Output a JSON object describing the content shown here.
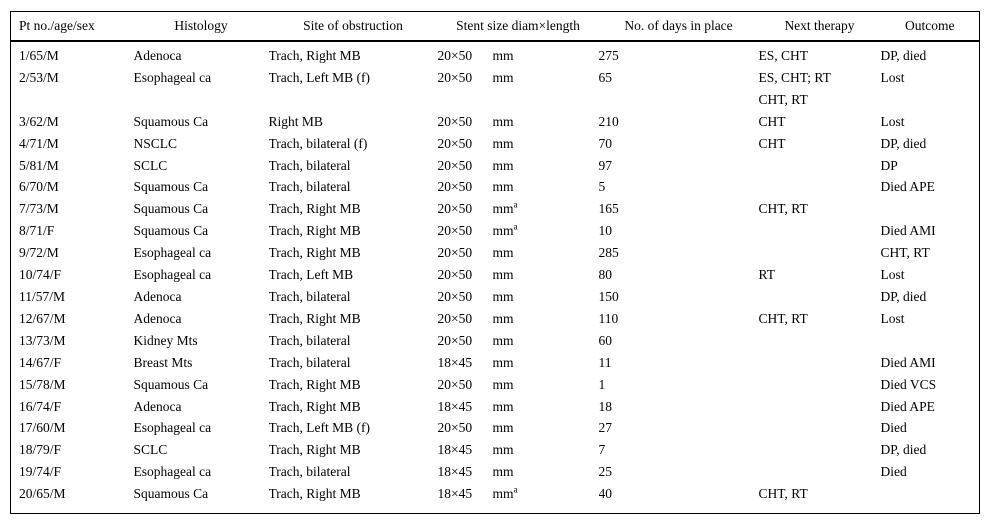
{
  "page": {
    "background_color": "#ffffff",
    "text_color": "#000000",
    "rule_color": "#000000"
  },
  "table": {
    "columns": [
      "Pt no./age/sex",
      "Histology",
      "Site of obstruction",
      "Stent size diam×length",
      "No. of days in place",
      "Next therapy",
      "Outcome"
    ],
    "footnote_marker": "a",
    "rows": [
      {
        "pt": "1/65/M",
        "histology": "Adenoca",
        "site": "Trach, Right MB",
        "size": "20×50",
        "unit": "mm",
        "unit_sup": "",
        "days": "275",
        "therapy": [
          "ES, CHT"
        ],
        "outcome": "DP, died"
      },
      {
        "pt": "2/53/M",
        "histology": "Esophageal ca",
        "site": "Trach, Left MB (f)",
        "size": "20×50",
        "unit": "mm",
        "unit_sup": "",
        "days": "65",
        "therapy": [
          "ES, CHT; RT",
          "CHT, RT"
        ],
        "outcome": "Lost"
      },
      {
        "pt": "3/62/M",
        "histology": "Squamous Ca",
        "site": "Right MB",
        "size": "20×50",
        "unit": "mm",
        "unit_sup": "",
        "days": "210",
        "therapy": [
          "CHT"
        ],
        "outcome": "Lost"
      },
      {
        "pt": "4/71/M",
        "histology": "NSCLC",
        "site": "Trach, bilateral (f)",
        "size": "20×50",
        "unit": "mm",
        "unit_sup": "",
        "days": "70",
        "therapy": [
          "CHT"
        ],
        "outcome": "DP, died"
      },
      {
        "pt": "5/81/M",
        "histology": "SCLC",
        "site": "Trach, bilateral",
        "size": "20×50",
        "unit": "mm",
        "unit_sup": "",
        "days": "97",
        "therapy": [],
        "outcome": "DP"
      },
      {
        "pt": "6/70/M",
        "histology": "Squamous Ca",
        "site": "Trach, bilateral",
        "size": "20×50",
        "unit": "mm",
        "unit_sup": "",
        "days": "5",
        "therapy": [],
        "outcome": "Died APE"
      },
      {
        "pt": "7/73/M",
        "histology": "Squamous Ca",
        "site": "Trach, Right MB",
        "size": "20×50",
        "unit": "mm",
        "unit_sup": "a",
        "days": "165",
        "therapy": [
          "CHT, RT"
        ],
        "outcome": ""
      },
      {
        "pt": "8/71/F",
        "histology": "Squamous Ca",
        "site": "Trach, Right MB",
        "size": "20×50",
        "unit": "mm",
        "unit_sup": "a",
        "days": "10",
        "therapy": [],
        "outcome": "Died AMI"
      },
      {
        "pt": "9/72/M",
        "histology": "Esophageal ca",
        "site": "Trach, Right MB",
        "size": "20×50",
        "unit": "mm",
        "unit_sup": "",
        "days": "285",
        "therapy": [],
        "outcome": "CHT, RT"
      },
      {
        "pt": "10/74/F",
        "histology": "Esophageal ca",
        "site": "Trach, Left MB",
        "size": "20×50",
        "unit": "mm",
        "unit_sup": "",
        "days": "80",
        "therapy": [
          "RT"
        ],
        "outcome": "Lost"
      },
      {
        "pt": "11/57/M",
        "histology": "Adenoca",
        "site": "Trach, bilateral",
        "size": "20×50",
        "unit": "mm",
        "unit_sup": "",
        "days": "150",
        "therapy": [],
        "outcome": "DP, died"
      },
      {
        "pt": "12/67/M",
        "histology": "Adenoca",
        "site": "Trach, Right MB",
        "size": "20×50",
        "unit": "mm",
        "unit_sup": "",
        "days": "110",
        "therapy": [
          "CHT, RT"
        ],
        "outcome": "Lost"
      },
      {
        "pt": "13/73/M",
        "histology": "Kidney Mts",
        "site": "Trach, bilateral",
        "size": "20×50",
        "unit": "mm",
        "unit_sup": "",
        "days": "60",
        "therapy": [],
        "outcome": ""
      },
      {
        "pt": "14/67/F",
        "histology": "Breast Mts",
        "site": "Trach, bilateral",
        "size": "18×45",
        "unit": "mm",
        "unit_sup": "",
        "days": "11",
        "therapy": [],
        "outcome": "Died AMI"
      },
      {
        "pt": "15/78/M",
        "histology": "Squamous Ca",
        "site": "Trach, Right MB",
        "size": "20×50",
        "unit": "mm",
        "unit_sup": "",
        "days": "1",
        "therapy": [],
        "outcome": "Died VCS"
      },
      {
        "pt": "16/74/F",
        "histology": "Adenoca",
        "site": "Trach, Right MB",
        "size": "18×45",
        "unit": "mm",
        "unit_sup": "",
        "days": "18",
        "therapy": [],
        "outcome": "Died APE"
      },
      {
        "pt": "17/60/M",
        "histology": "Esophageal ca",
        "site": "Trach, Left MB (f)",
        "size": "20×50",
        "unit": "mm",
        "unit_sup": "",
        "days": "27",
        "therapy": [],
        "outcome": "Died"
      },
      {
        "pt": "18/79/F",
        "histology": "SCLC",
        "site": "Trach, Right MB",
        "size": "18×45",
        "unit": "mm",
        "unit_sup": "",
        "days": "7",
        "therapy": [],
        "outcome": "DP, died"
      },
      {
        "pt": "19/74/F",
        "histology": "Esophageal ca",
        "site": "Trach, bilateral",
        "size": "18×45",
        "unit": "mm",
        "unit_sup": "",
        "days": "25",
        "therapy": [],
        "outcome": "Died"
      },
      {
        "pt": "20/65/M",
        "histology": "Squamous Ca",
        "site": "Trach, Right MB",
        "size": "18×45",
        "unit": "mm",
        "unit_sup": "a",
        "days": "40",
        "therapy": [
          "CHT, RT"
        ],
        "outcome": ""
      }
    ]
  }
}
